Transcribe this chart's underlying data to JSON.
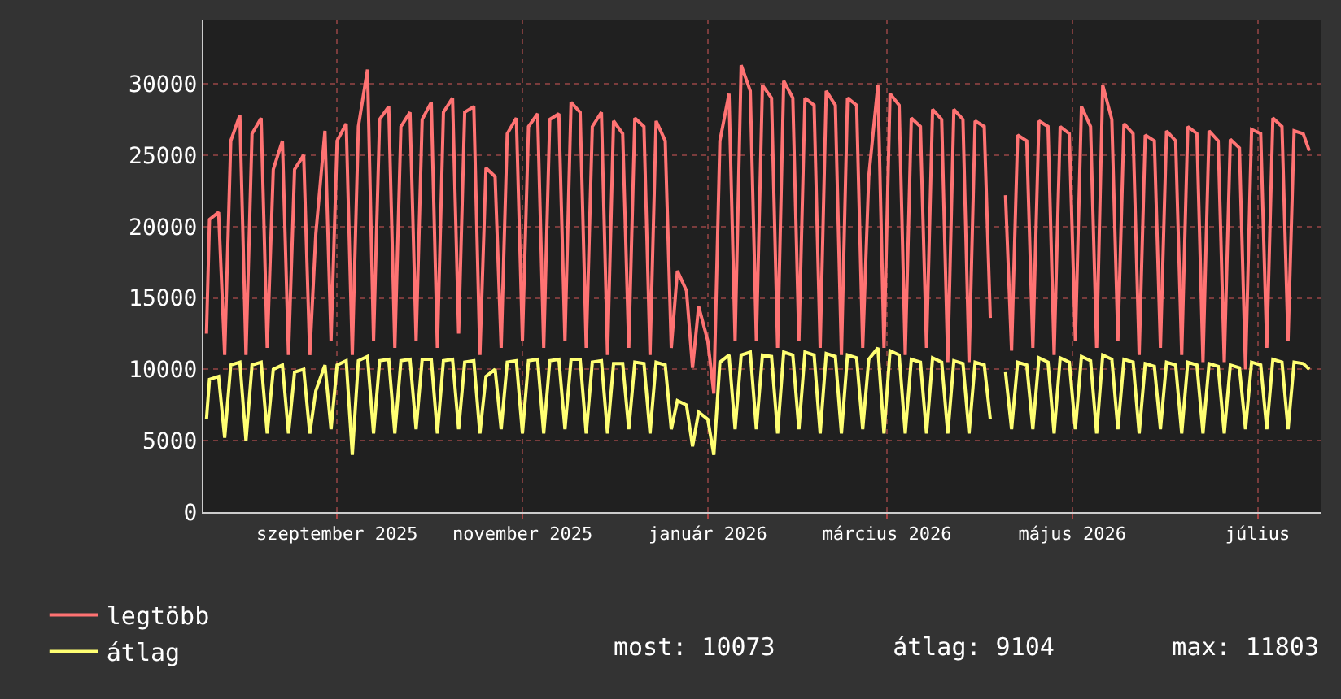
{
  "chart_data": {
    "type": "line",
    "x": [
      "2025-07-20",
      "2025-07-21",
      "2025-07-24",
      "2025-07-26",
      "2025-07-28",
      "2025-07-31",
      "2025-08-02",
      "2025-08-04",
      "2025-08-07",
      "2025-08-09",
      "2025-08-11",
      "2025-08-14",
      "2025-08-16",
      "2025-08-18",
      "2025-08-21",
      "2025-08-23",
      "2025-08-25",
      "2025-08-28",
      "2025-08-30",
      "2025-09-01",
      "2025-09-04",
      "2025-09-06",
      "2025-09-08",
      "2025-09-11",
      "2025-09-13",
      "2025-09-15",
      "2025-09-18",
      "2025-09-20",
      "2025-09-22",
      "2025-09-25",
      "2025-09-27",
      "2025-09-29",
      "2025-10-02",
      "2025-10-04",
      "2025-10-06",
      "2025-10-09",
      "2025-10-11",
      "2025-10-13",
      "2025-10-16",
      "2025-10-18",
      "2025-10-20",
      "2025-10-23",
      "2025-10-25",
      "2025-10-27",
      "2025-10-30",
      "2025-11-01",
      "2025-11-03",
      "2025-11-06",
      "2025-11-08",
      "2025-11-10",
      "2025-11-13",
      "2025-11-15",
      "2025-11-17",
      "2025-11-20",
      "2025-11-22",
      "2025-11-24",
      "2025-11-27",
      "2025-11-29",
      "2025-12-01",
      "2025-12-04",
      "2025-12-06",
      "2025-12-08",
      "2025-12-11",
      "2025-12-13",
      "2025-12-15",
      "2025-12-18",
      "2025-12-20",
      "2025-12-22",
      "2025-12-25",
      "2025-12-27",
      "2025-12-29",
      "2026-01-01",
      "2026-01-03",
      "2026-01-05",
      "2026-01-08",
      "2026-01-10",
      "2026-01-12",
      "2026-01-15",
      "2026-01-17",
      "2026-01-19",
      "2026-01-22",
      "2026-01-24",
      "2026-01-26",
      "2026-01-29",
      "2026-01-31",
      "2026-02-02",
      "2026-02-05",
      "2026-02-07",
      "2026-02-09",
      "2026-02-12",
      "2026-02-14",
      "2026-02-16",
      "2026-02-19",
      "2026-02-21",
      "2026-02-23",
      "2026-02-26",
      "2026-02-28",
      "2026-03-02",
      "2026-03-05",
      "2026-03-07",
      "2026-03-09",
      "2026-03-12",
      "2026-03-14",
      "2026-03-16",
      "2026-03-19",
      "2026-03-21",
      "2026-03-23",
      "2026-03-26",
      "2026-03-28",
      "2026-03-30",
      "2026-04-02",
      "2026-04-04",
      "2026-04-06",
      "2026-04-09",
      "2026-04-11",
      "2026-04-13",
      "2026-04-16",
      "2026-04-18",
      "2026-04-20",
      "2026-04-23",
      "2026-04-25",
      "2026-04-27",
      "2026-04-30",
      "2026-05-02",
      "2026-05-04",
      "2026-05-07",
      "2026-05-09",
      "2026-05-11",
      "2026-05-14",
      "2026-05-16",
      "2026-05-18",
      "2026-05-21",
      "2026-05-23",
      "2026-05-25",
      "2026-05-28",
      "2026-05-30",
      "2026-06-01",
      "2026-06-04",
      "2026-06-06",
      "2026-06-08",
      "2026-06-11",
      "2026-06-13",
      "2026-06-15",
      "2026-06-18",
      "2026-06-20",
      "2026-06-22",
      "2026-06-25",
      "2026-06-27",
      "2026-06-29",
      "2026-07-02",
      "2026-07-04",
      "2026-07-06",
      "2026-07-09",
      "2026-07-11",
      "2026-07-13",
      "2026-07-16",
      "2026-07-18"
    ],
    "series": [
      {
        "name": "legtöbb",
        "color": "#ff7373",
        "values": [
          12500,
          20500,
          21000,
          11000,
          26000,
          27800,
          11000,
          26500,
          27600,
          11500,
          24000,
          26000,
          11000,
          24000,
          25000,
          11000,
          19500,
          26700,
          12000,
          26000,
          27200,
          11000,
          27000,
          31000,
          12000,
          27500,
          28400,
          11500,
          27000,
          28000,
          12000,
          27500,
          28700,
          11500,
          28000,
          29000,
          12500,
          28000,
          28400,
          11000,
          24100,
          23500,
          11500,
          26500,
          27600,
          12000,
          27000,
          27900,
          11500,
          27500,
          27900,
          12000,
          28700,
          28000,
          11500,
          27000,
          28000,
          11000,
          27400,
          26500,
          11500,
          27600,
          27000,
          11000,
          27400,
          26000,
          11500,
          16900,
          15500,
          10100,
          14400,
          12000,
          8300,
          26000,
          29300,
          12000,
          31300,
          29500,
          12000,
          29900,
          29000,
          11500,
          30200,
          29000,
          12000,
          29000,
          28500,
          11500,
          29500,
          28500,
          11000,
          29000,
          28500,
          11500,
          23500,
          29900,
          11500,
          29300,
          28500,
          11000,
          27600,
          27000,
          11500,
          28200,
          27500,
          10500,
          28200,
          27500,
          10500,
          27400,
          27000,
          13600,
          null,
          22200,
          11300,
          26400,
          26000,
          11500,
          27400,
          27000,
          11000,
          27000,
          26500,
          12000,
          28400,
          27000,
          11500,
          29900,
          27500,
          12000,
          27200,
          26500,
          11000,
          26400,
          26000,
          11500,
          26700,
          26000,
          11000,
          27000,
          26500,
          10500,
          26700,
          26000,
          10500,
          26100,
          25500,
          10000,
          26800,
          26500,
          11500,
          27600,
          27000,
          12000,
          26700,
          26500,
          25300
        ]
      },
      {
        "name": "átlag",
        "color": "#ffff73",
        "values": [
          6500,
          9300,
          9500,
          5200,
          10300,
          10500,
          5000,
          10300,
          10500,
          5500,
          10000,
          10300,
          5500,
          9800,
          10000,
          5500,
          8500,
          10300,
          5800,
          10300,
          10600,
          4000,
          10600,
          10900,
          5500,
          10600,
          10700,
          5500,
          10600,
          10700,
          5800,
          10700,
          10700,
          5500,
          10600,
          10700,
          5800,
          10500,
          10600,
          5500,
          9500,
          10000,
          5800,
          10500,
          10600,
          5500,
          10600,
          10700,
          5500,
          10600,
          10700,
          5800,
          10700,
          10700,
          5500,
          10500,
          10600,
          5500,
          10400,
          10400,
          5800,
          10500,
          10400,
          5500,
          10500,
          10300,
          5800,
          7800,
          7500,
          4600,
          7000,
          6500,
          4000,
          10500,
          11000,
          5800,
          11000,
          11200,
          5800,
          11000,
          10900,
          5500,
          11200,
          11000,
          5800,
          11200,
          11000,
          5500,
          11100,
          10900,
          5500,
          11000,
          10800,
          5800,
          10700,
          11500,
          5500,
          11300,
          11000,
          5500,
          10700,
          10500,
          5500,
          10800,
          10500,
          5500,
          10600,
          10400,
          5500,
          10500,
          10300,
          6500,
          null,
          9800,
          5800,
          10500,
          10300,
          5800,
          10800,
          10500,
          5500,
          10800,
          10500,
          5800,
          10900,
          10600,
          5500,
          11000,
          10700,
          5800,
          10700,
          10500,
          5500,
          10400,
          10200,
          5800,
          10500,
          10300,
          5500,
          10500,
          10300,
          5500,
          10400,
          10200,
          5500,
          10300,
          10100,
          5800,
          10500,
          10300,
          5800,
          10700,
          10500,
          5800,
          10500,
          10400,
          10000
        ]
      }
    ],
    "xlim": [
      "2025-07-19",
      "2026-07-22"
    ],
    "xticks": [
      {
        "value": "2025-09-01",
        "label": "szeptember 2025"
      },
      {
        "value": "2025-11-01",
        "label": "november 2025"
      },
      {
        "value": "2026-01-01",
        "label": "január 2026"
      },
      {
        "value": "2026-03-01",
        "label": "március 2026"
      },
      {
        "value": "2026-05-01",
        "label": "május 2026"
      },
      {
        "value": "2026-07-01",
        "label": "július"
      }
    ],
    "ylim": [
      0,
      34500
    ],
    "yticks": [
      0,
      5000,
      10000,
      15000,
      20000,
      25000,
      30000
    ],
    "grid": true,
    "legend": "bottom left",
    "annotations": [
      "most: 10073        átlag: 9104        max: 11803"
    ]
  }
}
